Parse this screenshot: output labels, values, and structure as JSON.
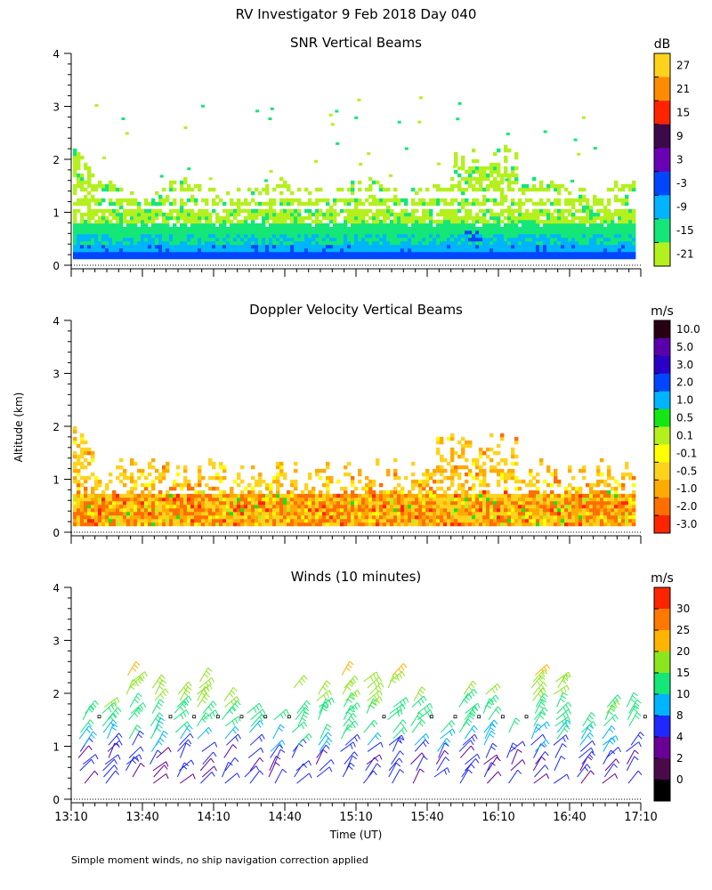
{
  "title": "RV Investigator   9 Feb 2018 Day 040",
  "footnote": "Simple moment winds, no ship navigation correction applied",
  "ylabel": "Altitude (km)",
  "xlabel": "Time (UT)",
  "chart_data": [
    {
      "type": "heatmap",
      "title": "SNR Vertical Beams",
      "ylabel": "Altitude (km)",
      "ylim": [
        0,
        4
      ],
      "yticks": [
        0,
        1,
        2,
        3,
        4
      ],
      "x_range": [
        "13:10",
        "17:10"
      ],
      "colorbar": {
        "unit": "dB",
        "labels": [
          "27",
          "21",
          "15",
          "9",
          "3",
          "-3",
          "-9",
          "-15",
          "-21"
        ],
        "colors": [
          "#ffd21e",
          "#ff8c00",
          "#ff2400",
          "#3c0a4a",
          "#6a00b4",
          "#0046ff",
          "#00b4ff",
          "#14e678",
          "#b4f01e"
        ]
      },
      "description_values": {
        "echo_top_km_typical": 1.5,
        "echo_top_km_max": 2.3,
        "strong_layer_km": [
          0.15,
          0.6
        ]
      }
    },
    {
      "type": "heatmap",
      "title": "Doppler Velocity Vertical Beams",
      "ylabel": "Altitude (km)",
      "ylim": [
        0,
        4
      ],
      "yticks": [
        0,
        1,
        2,
        3,
        4
      ],
      "x_range": [
        "13:10",
        "17:10"
      ],
      "colorbar": {
        "unit": "m/s",
        "labels": [
          "10.0",
          "5.0",
          "3.0",
          "2.0",
          "1.0",
          "0.5",
          "0.1",
          "-0.1",
          "-0.5",
          "-1.0",
          "-2.0",
          "-3.0"
        ],
        "colors": [
          "#280014",
          "#5a00aa",
          "#2800c8",
          "#0046ff",
          "#00b4ff",
          "#14e614",
          "#b4f01e",
          "#ffff00",
          "#ffd21e",
          "#ffaa00",
          "#ff6e00",
          "#ff2400"
        ]
      },
      "description_values": {
        "dominant_velocity_ms": [
          -0.5,
          -1.0
        ],
        "echo_top_km_typical": 1.2
      }
    },
    {
      "type": "scatter",
      "title": "Winds (10 minutes)",
      "ylabel": "Altitude (km)",
      "ylim": [
        0,
        4
      ],
      "yticks": [
        0,
        1,
        2,
        3,
        4
      ],
      "xlabel": "Time (UT)",
      "xticks": [
        "13:10",
        "13:40",
        "14:10",
        "14:40",
        "15:10",
        "15:40",
        "16:10",
        "16:40",
        "17:10"
      ],
      "colorbar": {
        "unit": "m/s",
        "labels": [
          "30",
          "25",
          "20",
          "15",
          "10",
          "8",
          "4",
          "2",
          "0"
        ],
        "colors": [
          "#ff2400",
          "#ff7800",
          "#ffb400",
          "#8ce61e",
          "#14e678",
          "#00b4ff",
          "#1e28ff",
          "#6a0096",
          "#4a0a4a",
          "#000000"
        ]
      },
      "profiles_hhmm": [
        "13:10",
        "13:20",
        "13:30",
        "13:40",
        "13:50",
        "14:00",
        "14:10",
        "14:20",
        "14:30",
        "14:40",
        "14:50",
        "15:00",
        "15:10",
        "15:20",
        "15:30",
        "15:40",
        "15:50",
        "16:00",
        "16:10",
        "16:20",
        "16:30",
        "16:40",
        "16:50",
        "17:00"
      ]
    }
  ]
}
